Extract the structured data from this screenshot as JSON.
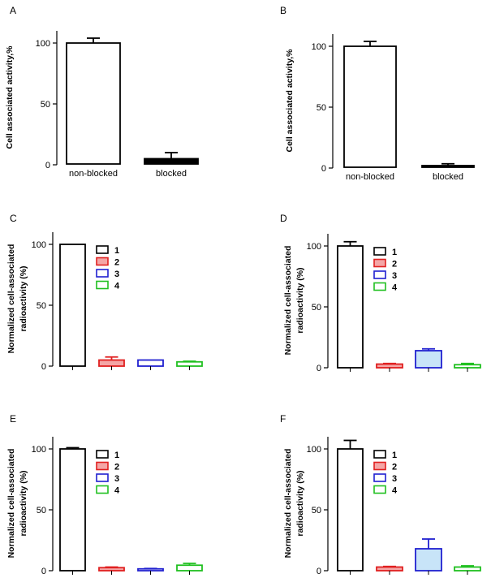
{
  "chart_data": [
    {
      "panel": "A",
      "type": "bar",
      "ylabel_lines": [
        "Cell associated  activity,%"
      ],
      "ylim": [
        0,
        110
      ],
      "yticks": [
        0,
        50,
        100
      ],
      "categories": [
        "non-blocked",
        "blocked"
      ],
      "show_category_labels": true,
      "values": [
        100,
        5
      ],
      "errors": [
        4,
        5
      ],
      "fills": [
        "#ffffff",
        "#000000"
      ],
      "strokes": [
        "#000000",
        "#000000"
      ],
      "legend": null
    },
    {
      "panel": "B",
      "type": "bar",
      "ylabel_lines": [
        "Cell associated activity,%"
      ],
      "ylim": [
        0,
        110
      ],
      "yticks": [
        0,
        50,
        100
      ],
      "categories": [
        "non-blocked",
        "blocked"
      ],
      "show_category_labels": true,
      "values": [
        100,
        2
      ],
      "errors": [
        4,
        1.5
      ],
      "fills": [
        "#ffffff",
        "#000000"
      ],
      "strokes": [
        "#000000",
        "#000000"
      ],
      "legend": null
    },
    {
      "panel": "C",
      "type": "bar",
      "ylabel_lines": [
        "Normalized cell-associated",
        "radioactivity (%)"
      ],
      "ylim": [
        0,
        110
      ],
      "yticks": [
        0,
        50,
        100
      ],
      "categories": [
        "1",
        "2",
        "3",
        "4"
      ],
      "show_category_labels": false,
      "values": [
        100,
        5,
        5,
        3.5
      ],
      "errors": [
        0,
        2.5,
        0,
        0.5
      ],
      "fills": [
        "#ffffff",
        "#f4a6a6",
        "#ffffff",
        "#ffffff"
      ],
      "strokes": [
        "#000000",
        "#e02020",
        "#2020d0",
        "#20c020"
      ],
      "legend": [
        "1",
        "2",
        "3",
        "4"
      ]
    },
    {
      "panel": "D",
      "type": "bar",
      "ylabel_lines": [
        "Normalized cell-associated",
        "radioactivity (%)"
      ],
      "ylim": [
        0,
        110
      ],
      "yticks": [
        0,
        50,
        100
      ],
      "categories": [
        "1",
        "2",
        "3",
        "4"
      ],
      "show_category_labels": false,
      "values": [
        100,
        3,
        14,
        2.5
      ],
      "errors": [
        3.5,
        0.5,
        1.5,
        1
      ],
      "fills": [
        "#ffffff",
        "#f4a6a6",
        "#c8e4f8",
        "#ffffff"
      ],
      "strokes": [
        "#000000",
        "#e02020",
        "#2020d0",
        "#20c020"
      ],
      "legend": [
        "1",
        "2",
        "3",
        "4"
      ]
    },
    {
      "panel": "E",
      "type": "bar",
      "ylabel_lines": [
        "Normalized cell-associated",
        "radioactivity (%)"
      ],
      "ylim": [
        0,
        110
      ],
      "yticks": [
        0,
        50,
        100
      ],
      "categories": [
        "1",
        "2",
        "3",
        "4"
      ],
      "show_category_labels": false,
      "values": [
        100,
        2.5,
        1.5,
        4.5
      ],
      "errors": [
        1,
        0.5,
        0.3,
        1.5
      ],
      "fills": [
        "#ffffff",
        "#f4a6a6",
        "#ffffff",
        "#ffffff"
      ],
      "strokes": [
        "#000000",
        "#e02020",
        "#2020d0",
        "#20c020"
      ],
      "legend": [
        "1",
        "2",
        "3",
        "4"
      ]
    },
    {
      "panel": "F",
      "type": "bar",
      "ylabel_lines": [
        "Normalized cell-associated",
        "radioactivity (%)"
      ],
      "ylim": [
        0,
        110
      ],
      "yticks": [
        0,
        50,
        100
      ],
      "categories": [
        "1",
        "2",
        "3",
        "4"
      ],
      "show_category_labels": false,
      "values": [
        100,
        3,
        18,
        3
      ],
      "errors": [
        7,
        0.5,
        8,
        1
      ],
      "fills": [
        "#ffffff",
        "#f4a6a6",
        "#c8e4f8",
        "#ffffff"
      ],
      "strokes": [
        "#000000",
        "#e02020",
        "#2020d0",
        "#20c020"
      ],
      "legend": [
        "1",
        "2",
        "3",
        "4"
      ]
    }
  ]
}
